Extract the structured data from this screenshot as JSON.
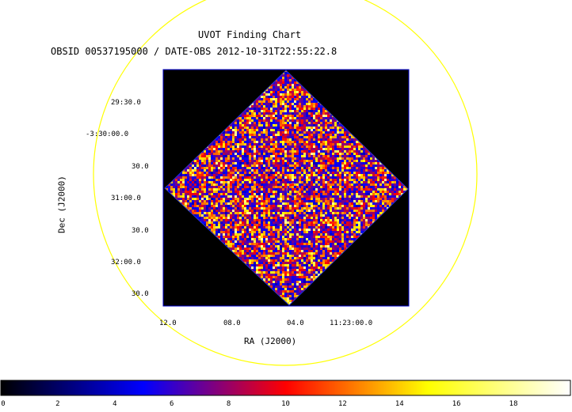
{
  "chart_data": {
    "type": "heatmap",
    "title": "UVOT Finding Chart",
    "subtitle": "OBSID 00537195000 / DATE-OBS 2012-10-31T22:55:22.8",
    "xlabel": "RA (J2000)",
    "ylabel": "Dec (J2000)",
    "x_ticks": [
      "12.0",
      "08.0",
      "04.0",
      "11:23:00.0"
    ],
    "y_ticks": [
      "29:30.0",
      "-3:30:00.0",
      "30.0",
      "31:00.0",
      "30.0",
      "32:00.0",
      "30.0"
    ],
    "colorbar": {
      "range": [
        0,
        20
      ],
      "ticks": [
        0,
        2,
        4,
        6,
        8,
        10,
        12,
        14,
        16,
        18
      ],
      "colors": [
        "#000000",
        "#0000ff",
        "#ff0000",
        "#ffff00",
        "#ffffff"
      ]
    },
    "colors": {
      "circle": "#ffff00",
      "background": "#000000",
      "frame": "#0000cc"
    }
  }
}
